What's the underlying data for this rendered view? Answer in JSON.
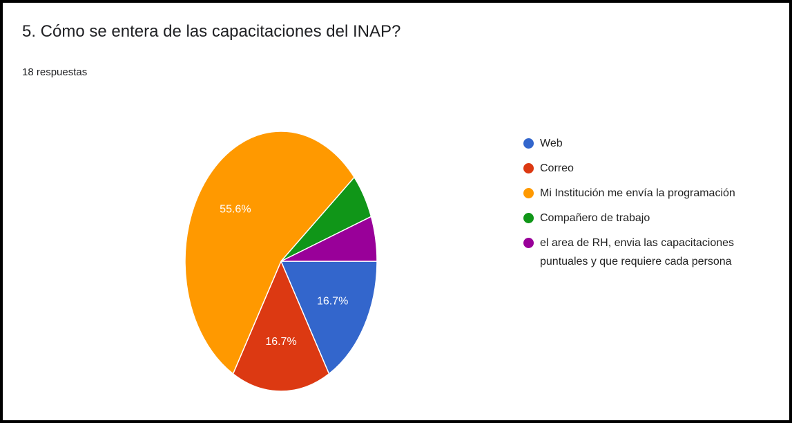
{
  "chart_data": {
    "type": "pie",
    "title": "5. Cómo se entera de las capacitaciones del INAP?",
    "subtitle": "18 respuestas",
    "categories": [
      "Web",
      "Correo",
      "Mi Institución me envía la programación",
      "Compañero de trabajo",
      "el area de RH, envia las capacitaciones puntuales y que requiere cada persona"
    ],
    "values": [
      16.7,
      16.7,
      55.6,
      5.6,
      5.6
    ],
    "value_labels": [
      "16.7%",
      "16.7%",
      "55.6%",
      null,
      null
    ],
    "colors": [
      "#3366cc",
      "#dc3912",
      "#ff9900",
      "#109618",
      "#990099"
    ],
    "legend": "right"
  }
}
